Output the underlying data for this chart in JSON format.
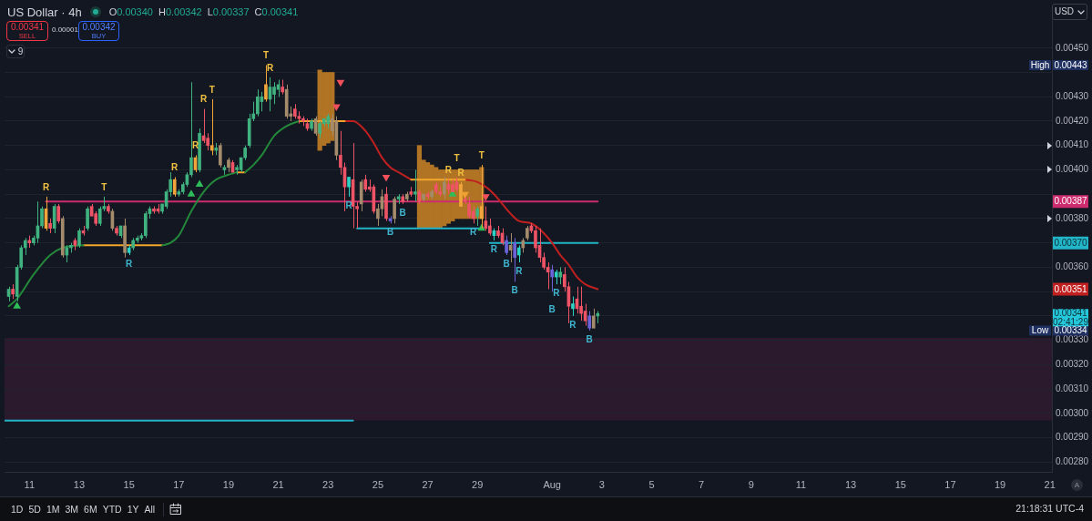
{
  "chart_data": {
    "type": "candlestick",
    "title": "US Dollar · 4h",
    "annotations": [
      "O0.00340",
      "H0.00342",
      "L0.00337",
      "C0.00341",
      "0.00341",
      "SELL",
      "0.00001",
      "0.00342",
      "BUY",
      "9",
      "1D",
      "5D",
      "1M",
      "3M",
      "6M",
      "YTD",
      "1Y",
      "All",
      "21:18:31 UTC-4",
      "USD",
      "A",
      "0.00341",
      "02:41:29",
      "High",
      "0.00443",
      "Low",
      "0.00334",
      {
        "text": "0.00387",
        "y": 0.00387
      },
      {
        "text": "0.00370",
        "y": 0.0037
      },
      {
        "text": "0.00351",
        "y": 0.00351
      },
      {
        "text": "R",
        "x": "--07-11T16:00",
        "y": 0.00389
      },
      {
        "text": "R",
        "x": "--07-16T20:00",
        "y": 0.00397
      },
      {
        "text": "R",
        "x": "--07-17T16:00",
        "y": 0.00406
      },
      {
        "text": "R",
        "x": "--07-18T00:00",
        "y": 0.00425
      },
      {
        "text": "R",
        "x": "--07-20T16:00",
        "y": 0.00438
      },
      {
        "text": "R",
        "x": "--07-27T20:00",
        "y": 0.00396
      },
      {
        "text": "R",
        "x": "--07-28T08:00",
        "y": 0.00395
      },
      {
        "text": "T",
        "x": "--07-14T00:00",
        "y": 0.00389
      },
      {
        "text": "T",
        "x": "--07-18T08:00",
        "y": 0.00429
      },
      {
        "text": "T",
        "x": "--07-20T12:00",
        "y": 0.00443
      },
      {
        "text": "T",
        "x": "--07-28T04:00",
        "y": 0.00397
      },
      {
        "text": "T",
        "x": "--07-29T04:00",
        "y": 0.00402
      },
      {
        "text": "R",
        "x": "--07-15T00:00",
        "y": 0.00365
      },
      {
        "text": "R",
        "x": "--07-23T20:00",
        "y": 0.00389
      },
      {
        "text": "R",
        "x": "--07-28T20:00",
        "y": 0.00378
      },
      {
        "text": "R",
        "x": "--07-29T16:00",
        "y": 0.00371
      },
      {
        "text": "R",
        "x": "--07-30T16:00",
        "y": 0.00362
      },
      {
        "text": "R",
        "x": "--08-01T04:00",
        "y": 0.00353
      },
      {
        "text": "R",
        "x": "--08-01T20:00",
        "y": 0.0034
      },
      {
        "text": "B",
        "x": "--07-25T12:00",
        "y": 0.00378
      },
      {
        "text": "B",
        "x": "--07-26T00:00",
        "y": 0.00386
      },
      {
        "text": "B",
        "x": "--07-30T04:00",
        "y": 0.00365
      },
      {
        "text": "B",
        "x": "--07-30T12:00",
        "y": 0.00354
      },
      {
        "text": "B",
        "x": "--08-01T00:00",
        "y": 0.0035
      },
      {
        "text": "B",
        "x": "--08-02T12:00",
        "y": 0.00334
      }
    ],
    "x": [
      "--07-10T04:00",
      "--07-10T08:00",
      "--07-10T12:00",
      "--07-10T16:00",
      "--07-10T20:00",
      "--07-11T00:00",
      "--07-11T04:00",
      "--07-11T08:00",
      "--07-11T12:00",
      "--07-11T16:00",
      "--07-11T20:00",
      "--07-12T00:00",
      "--07-12T04:00",
      "--07-12T08:00",
      "--07-12T12:00",
      "--07-12T16:00",
      "--07-12T20:00",
      "--07-13T00:00",
      "--07-13T04:00",
      "--07-13T08:00",
      "--07-13T12:00",
      "--07-13T16:00",
      "--07-13T20:00",
      "--07-14T00:00",
      "--07-14T04:00",
      "--07-14T08:00",
      "--07-14T12:00",
      "--07-14T16:00",
      "--07-14T20:00",
      "--07-15T00:00",
      "--07-15T04:00",
      "--07-15T08:00",
      "--07-15T12:00",
      "--07-15T16:00",
      "--07-15T20:00",
      "--07-16T00:00",
      "--07-16T04:00",
      "--07-16T08:00",
      "--07-16T12:00",
      "--07-16T16:00",
      "--07-16T20:00",
      "--07-17T00:00",
      "--07-17T04:00",
      "--07-17T08:00",
      "--07-17T12:00",
      "--07-17T16:00",
      "--07-17T20:00",
      "--07-18T00:00",
      "--07-18T04:00",
      "--07-18T08:00",
      "--07-18T12:00",
      "--07-18T16:00",
      "--07-18T20:00",
      "--07-19T00:00",
      "--07-19T04:00",
      "--07-19T08:00",
      "--07-19T12:00",
      "--07-19T16:00",
      "--07-19T20:00",
      "--07-20T00:00",
      "--07-20T04:00",
      "--07-20T08:00",
      "--07-20T12:00",
      "--07-20T16:00",
      "--07-20T20:00",
      "--07-21T00:00",
      "--07-21T04:00",
      "--07-21T08:00",
      "--07-21T12:00",
      "--07-21T16:00",
      "--07-21T20:00",
      "--07-22T00:00",
      "--07-22T04:00",
      "--07-22T08:00",
      "--07-22T12:00",
      "--07-22T16:00",
      "--07-22T20:00",
      "--07-23T00:00",
      "--07-23T04:00",
      "--07-23T08:00",
      "--07-23T12:00",
      "--07-23T16:00",
      "--07-23T20:00",
      "--07-24T00:00",
      "--07-24T04:00",
      "--07-24T08:00",
      "--07-24T12:00",
      "--07-24T16:00",
      "--07-24T20:00",
      "--07-25T00:00",
      "--07-25T04:00",
      "--07-25T08:00",
      "--07-25T12:00",
      "--07-25T16:00",
      "--07-25T20:00",
      "--07-26T00:00",
      "--07-26T04:00",
      "--07-26T08:00",
      "--07-26T12:00",
      "--07-26T16:00",
      "--07-26T20:00",
      "--07-27T00:00",
      "--07-27T04:00",
      "--07-27T08:00",
      "--07-27T12:00",
      "--07-27T16:00",
      "--07-27T20:00",
      "--07-28T00:00",
      "--07-28T04:00",
      "--07-28T08:00",
      "--07-28T12:00",
      "--07-28T16:00",
      "--07-28T20:00",
      "--07-29T00:00",
      "--07-29T04:00",
      "--07-29T08:00",
      "--07-29T12:00",
      "--07-29T16:00",
      "--07-29T20:00",
      "--07-30T00:00",
      "--07-30T04:00",
      "--07-30T08:00",
      "--07-30T12:00",
      "--07-30T16:00",
      "--07-30T20:00",
      "--07-31T00:00",
      "--07-31T04:00",
      "--07-31T08:00",
      "--07-31T12:00",
      "--07-31T16:00",
      "--07-31T20:00",
      "--08-01T00:00",
      "--08-01T04:00",
      "--08-01T08:00",
      "--08-01T12:00",
      "--08-01T16:00",
      "--08-01T20:00",
      "--08-02T00:00",
      "--08-02T04:00",
      "--08-02T08:00",
      "--08-02T12:00",
      "--08-02T16:00",
      "--08-02T20:00"
    ],
    "ohlc": [
      [
        0.00348,
        0.00352,
        0.00346,
        0.00351
      ],
      [
        0.00351,
        0.00353,
        0.00347,
        0.00349
      ],
      [
        0.00348,
        0.00361,
        0.00346,
        0.0036
      ],
      [
        0.0036,
        0.00369,
        0.00359,
        0.00368
      ],
      [
        0.00368,
        0.00372,
        0.00365,
        0.00371
      ],
      [
        0.00371,
        0.00373,
        0.00368,
        0.0037
      ],
      [
        0.0037,
        0.00373,
        0.00369,
        0.00372
      ],
      [
        0.00372,
        0.00387,
        0.0037,
        0.00377
      ],
      [
        0.00377,
        0.00385,
        0.00376,
        0.00384
      ],
      [
        0.00384,
        0.00389,
        0.00375,
        0.00376
      ],
      [
        0.00378,
        0.0038,
        0.00374,
        0.00376
      ],
      [
        0.00376,
        0.00386,
        0.00374,
        0.00385
      ],
      [
        0.00385,
        0.00386,
        0.00378,
        0.00379
      ],
      [
        0.0038,
        0.00381,
        0.00364,
        0.00365
      ],
      [
        0.00365,
        0.00369,
        0.00362,
        0.00368
      ],
      [
        0.00368,
        0.0037,
        0.00366,
        0.00369
      ],
      [
        0.00371,
        0.00372,
        0.00367,
        0.00369
      ],
      [
        0.00369,
        0.00376,
        0.00368,
        0.00375
      ],
      [
        0.00375,
        0.00377,
        0.00373,
        0.00374
      ],
      [
        0.00376,
        0.00385,
        0.00375,
        0.00384
      ],
      [
        0.00385,
        0.00386,
        0.00381,
        0.00381
      ],
      [
        0.00382,
        0.00383,
        0.00377,
        0.00378
      ],
      [
        0.00378,
        0.00385,
        0.00377,
        0.00384
      ],
      [
        0.00384,
        0.00389,
        0.00383,
        0.00385
      ],
      [
        0.00385,
        0.00386,
        0.00382,
        0.00383
      ],
      [
        0.00383,
        0.00384,
        0.00375,
        0.00376
      ],
      [
        0.00376,
        0.00377,
        0.00373,
        0.00374
      ],
      [
        0.00373,
        0.00377,
        0.00372,
        0.00377
      ],
      [
        0.00377,
        0.0038,
        0.00364,
        0.00366
      ],
      [
        0.00366,
        0.00369,
        0.00365,
        0.00368
      ],
      [
        0.00368,
        0.00372,
        0.00367,
        0.00371
      ],
      [
        0.00371,
        0.00373,
        0.0037,
        0.00372
      ],
      [
        0.00372,
        0.00374,
        0.00371,
        0.00373
      ],
      [
        0.00373,
        0.00383,
        0.00372,
        0.00382
      ],
      [
        0.00382,
        0.00385,
        0.0038,
        0.00384
      ],
      [
        0.00384,
        0.00385,
        0.00382,
        0.00383
      ],
      [
        0.00384,
        0.00386,
        0.00382,
        0.00383
      ],
      [
        0.00383,
        0.00386,
        0.00382,
        0.00386
      ],
      [
        0.00385,
        0.00392,
        0.00384,
        0.00391
      ],
      [
        0.00391,
        0.00399,
        0.00389,
        0.00396
      ],
      [
        0.00396,
        0.00397,
        0.00389,
        0.0039
      ],
      [
        0.0039,
        0.00392,
        0.00389,
        0.00391
      ],
      [
        0.00391,
        0.00395,
        0.0039,
        0.00394
      ],
      [
        0.00394,
        0.00399,
        0.00393,
        0.00398
      ],
      [
        0.00398,
        0.00436,
        0.00397,
        0.00405
      ],
      [
        0.00405,
        0.00406,
        0.00399,
        0.004
      ],
      [
        0.004,
        0.00417,
        0.00399,
        0.00415
      ],
      [
        0.00414,
        0.00425,
        0.00411,
        0.00412
      ],
      [
        0.00413,
        0.00415,
        0.00408,
        0.0041
      ],
      [
        0.0041,
        0.00429,
        0.00406,
        0.00408
      ],
      [
        0.00408,
        0.00411,
        0.00406,
        0.00409
      ],
      [
        0.0041,
        0.00411,
        0.00401,
        0.00402
      ],
      [
        0.004,
        0.00402,
        0.00398,
        0.00401
      ],
      [
        0.00404,
        0.00405,
        0.00399,
        0.00401
      ],
      [
        0.00403,
        0.00404,
        0.00399,
        0.00399
      ],
      [
        0.004,
        0.00402,
        0.00398,
        0.00401
      ],
      [
        0.004,
        0.00405,
        0.00399,
        0.00405
      ],
      [
        0.00405,
        0.0041,
        0.00404,
        0.00409
      ],
      [
        0.0041,
        0.00423,
        0.00409,
        0.00421
      ],
      [
        0.00421,
        0.00428,
        0.0042,
        0.00423
      ],
      [
        0.00423,
        0.00433,
        0.00422,
        0.0043
      ],
      [
        0.00428,
        0.00432,
        0.00424,
        0.0043
      ],
      [
        0.00435,
        0.00443,
        0.00428,
        0.00429
      ],
      [
        0.00429,
        0.00438,
        0.00424,
        0.00434
      ],
      [
        0.00431,
        0.00436,
        0.00427,
        0.00434
      ],
      [
        0.00433,
        0.00437,
        0.0043,
        0.00435
      ],
      [
        0.00434,
        0.00437,
        0.00431,
        0.00432
      ],
      [
        0.00433,
        0.00435,
        0.00421,
        0.00422
      ],
      [
        0.00423,
        0.00426,
        0.0042,
        0.00422
      ],
      [
        0.00425,
        0.00427,
        0.00421,
        0.00422
      ],
      [
        0.00422,
        0.00424,
        0.00419,
        0.00421
      ],
      [
        0.00421,
        0.00422,
        0.00418,
        0.0042
      ],
      [
        0.00419,
        0.00421,
        0.00416,
        0.00417
      ],
      [
        0.00417,
        0.00421,
        0.00416,
        0.0042
      ],
      [
        0.00421,
        0.00422,
        0.00414,
        0.00415
      ],
      [
        0.00415,
        0.0042,
        0.00413,
        0.00419
      ],
      [
        0.00419,
        0.00421,
        0.00418,
        0.00421
      ],
      [
        0.00419,
        0.00423,
        0.00417,
        0.00422
      ],
      [
        0.00421,
        0.00423,
        0.00414,
        0.00416
      ],
      [
        0.0042,
        0.00422,
        0.00404,
        0.00406
      ],
      [
        0.00406,
        0.00416,
        0.00398,
        0.00401
      ],
      [
        0.00401,
        0.00403,
        0.00383,
        0.00393
      ],
      [
        0.00393,
        0.00397,
        0.00389,
        0.00397
      ],
      [
        0.00396,
        0.00411,
        0.00376,
        0.00385
      ],
      [
        0.00385,
        0.00387,
        0.00376,
        0.00384
      ],
      [
        0.00386,
        0.00396,
        0.00383,
        0.00395
      ],
      [
        0.00396,
        0.00398,
        0.00391,
        0.00392
      ],
      [
        0.00393,
        0.00396,
        0.00391,
        0.00392
      ],
      [
        0.00393,
        0.00394,
        0.00382,
        0.00383
      ],
      [
        0.00384,
        0.00386,
        0.00377,
        0.0038
      ],
      [
        0.00384,
        0.00392,
        0.00381,
        0.00389
      ],
      [
        0.0039,
        0.00393,
        0.00379,
        0.0038
      ],
      [
        0.0038,
        0.00381,
        0.00378,
        0.00379
      ],
      [
        0.0038,
        0.00389,
        0.00378,
        0.00388
      ],
      [
        0.00388,
        0.0039,
        0.00386,
        0.00389
      ],
      [
        0.00389,
        0.0039,
        0.00386,
        0.00387
      ],
      [
        0.00388,
        0.00391,
        0.00387,
        0.0039
      ],
      [
        0.00391,
        0.00393,
        0.00389,
        0.0039
      ],
      [
        0.0039,
        0.004,
        0.00387,
        0.00391
      ],
      [
        0.00391,
        0.00392,
        0.00386,
        0.00387
      ],
      [
        0.00388,
        0.0039,
        0.00387,
        0.0039
      ],
      [
        0.0039,
        0.00391,
        0.00388,
        0.00389
      ],
      [
        0.00389,
        0.00392,
        0.00388,
        0.00391
      ],
      [
        0.00394,
        0.00395,
        0.0039,
        0.00391
      ],
      [
        0.00391,
        0.00393,
        0.00389,
        0.0039
      ],
      [
        0.0039,
        0.00397,
        0.00388,
        0.00395
      ],
      [
        0.00394,
        0.00396,
        0.0039,
        0.00392
      ],
      [
        0.00394,
        0.00396,
        0.00391,
        0.00391
      ],
      [
        0.00395,
        0.00397,
        0.00391,
        0.00392
      ],
      [
        0.00394,
        0.00395,
        0.00385,
        0.00385
      ],
      [
        0.00388,
        0.00389,
        0.00386,
        0.00387
      ],
      [
        0.00386,
        0.00389,
        0.0038,
        0.00381
      ],
      [
        0.00383,
        0.00385,
        0.00378,
        0.0038
      ],
      [
        0.00381,
        0.00385,
        0.00377,
        0.00384
      ],
      [
        0.00385,
        0.00402,
        0.00376,
        0.0038
      ],
      [
        0.00379,
        0.00385,
        0.00375,
        0.00376
      ],
      [
        0.00377,
        0.0038,
        0.00373,
        0.00374
      ],
      [
        0.00373,
        0.00376,
        0.00371,
        0.00375
      ],
      [
        0.00375,
        0.00377,
        0.00372,
        0.00373
      ],
      [
        0.00374,
        0.00376,
        0.00369,
        0.0037
      ],
      [
        0.00371,
        0.00373,
        0.00365,
        0.00366
      ],
      [
        0.00367,
        0.00374,
        0.00362,
        0.00369
      ],
      [
        0.0037,
        0.00372,
        0.00354,
        0.00364
      ],
      [
        0.00365,
        0.00369,
        0.00362,
        0.00368
      ],
      [
        0.00368,
        0.00372,
        0.00366,
        0.00371
      ],
      [
        0.00372,
        0.00377,
        0.00371,
        0.00376
      ],
      [
        0.00377,
        0.00378,
        0.00374,
        0.00375
      ],
      [
        0.00375,
        0.00377,
        0.00366,
        0.00368
      ],
      [
        0.00369,
        0.00376,
        0.00362,
        0.00364
      ],
      [
        0.00364,
        0.00366,
        0.00359,
        0.0036
      ],
      [
        0.0036,
        0.00362,
        0.00351,
        0.00358
      ],
      [
        0.00359,
        0.00361,
        0.0035,
        0.00356
      ],
      [
        0.00356,
        0.00359,
        0.00353,
        0.00358
      ],
      [
        0.00356,
        0.0036,
        0.00353,
        0.00358
      ],
      [
        0.00357,
        0.0036,
        0.0035,
        0.00352
      ],
      [
        0.00352,
        0.00354,
        0.00337,
        0.00344
      ],
      [
        0.00343,
        0.00348,
        0.0034,
        0.00345
      ],
      [
        0.00347,
        0.00352,
        0.00341,
        0.00343
      ],
      [
        0.00344,
        0.00352,
        0.00338,
        0.00341
      ],
      [
        0.00342,
        0.00345,
        0.00336,
        0.00338
      ],
      [
        0.0034,
        0.00342,
        0.00334,
        0.00335
      ],
      [
        0.00335,
        0.00343,
        0.00335,
        0.0034
      ],
      [
        0.0034,
        0.00342,
        0.00337,
        0.00341
      ]
    ],
    "colors": [
      "#3fb27f",
      "#ef5466",
      "#3fb27f",
      "#3fb27f",
      "#3fb27f",
      "#ef5466",
      "#3fb27f",
      "#3fb27f",
      "#3fb27f",
      "#f2a53a",
      "#ef5466",
      "#3fb27f",
      "#ef5466",
      "#a48b6b",
      "#3fb27f",
      "#3fb27f",
      "#ef5466",
      "#3fb27f",
      "#ef5466",
      "#3fb27f",
      "#ef5466",
      "#ef5466",
      "#3fb27f",
      "#3fb27f",
      "#ef5466",
      "#a48b6b",
      "#ef5466",
      "#3fb27f",
      "#a48b6b",
      "#2cd3c4",
      "#3fb27f",
      "#3fb27f",
      "#3fb27f",
      "#3fb27f",
      "#3fb27f",
      "#ef5466",
      "#ef5466",
      "#3fb27f",
      "#3fb27f",
      "#3fb27f",
      "#f2a53a",
      "#3fb27f",
      "#3fb27f",
      "#3fb27f",
      "#3fb27f",
      "#f2a53a",
      "#3fb27f",
      "#ef5466",
      "#ef5466",
      "#f2a53a",
      "#3fb27f",
      "#a48b6b",
      "#3fb27f",
      "#a48b6b",
      "#ef5466",
      "#3fb27f",
      "#3fb27f",
      "#3fb27f",
      "#3fb27f",
      "#3fb27f",
      "#3fb27f",
      "#3fb27f",
      "#f2a53a",
      "#3fb27f",
      "#3fb27f",
      "#3fb27f",
      "#ef5466",
      "#a48b6b",
      "#a48b6b",
      "#ef5466",
      "#ef5466",
      "#ef5466",
      "#ef5466",
      "#3fb27f",
      "#a48b6b",
      "#3fb27f",
      "#3fb27f",
      "#3fb27f",
      "#a48b6b",
      "#a48b6b",
      "#ef5466",
      "#ef5466",
      "#2cd3c4",
      "#ef5466",
      "#ef5466",
      "#a48b6b",
      "#ef5466",
      "#ef5466",
      "#ef5466",
      "#a48b6b",
      "#a48b6b",
      "#ef5466",
      "#6c63d9",
      "#a48b6b",
      "#3fb27f",
      "#ef5466",
      "#a48b6b",
      "#ef5466",
      "#3fb27f",
      "#ef5466",
      "#a48b6b",
      "#ef5466",
      "#a48b6b",
      "#ef5466",
      "#ef5466",
      "#a48b6b",
      "#ef5466",
      "#ef5466",
      "#ef5466",
      "#f2a53a",
      "#ef5466",
      "#ef5466",
      "#ef5466",
      "#3fb27f",
      "#f2a53a",
      "#ef5466",
      "#ef5466",
      "#2cd3c4",
      "#ef5466",
      "#ef5466",
      "#6c63d9",
      "#a48b6b",
      "#6c63d9",
      "#2cd3c4",
      "#a48b6b",
      "#a48b6b",
      "#ef5466",
      "#ef5466",
      "#ef5466",
      "#ef5466",
      "#ef5466",
      "#6c63d9",
      "#2cd3c4",
      "#3fb27f",
      "#ef5466",
      "#ef5466",
      "#2cd3c4",
      "#ef5466",
      "#ef5466",
      "#ef5466",
      "#6c63d9",
      "#a48b6b",
      "#3fb27f"
    ],
    "xlim": [
      "--07-10T00:00",
      "--08-21T02:00"
    ],
    "xticks": [
      {
        "value": "--07-11",
        "label": "11"
      },
      {
        "value": "--07-13",
        "label": "13"
      },
      {
        "value": "--07-15",
        "label": "15"
      },
      {
        "value": "--07-17",
        "label": "17"
      },
      {
        "value": "--07-19",
        "label": "19"
      },
      {
        "value": "--07-21",
        "label": "21"
      },
      {
        "value": "--07-23",
        "label": "23"
      },
      {
        "value": "--07-25",
        "label": "25"
      },
      {
        "value": "--07-27",
        "label": "27"
      },
      {
        "value": "--07-29",
        "label": "29"
      },
      {
        "value": "--08-01",
        "label": "Aug"
      },
      {
        "value": "--08-03",
        "label": "3"
      },
      {
        "value": "--08-05",
        "label": "5"
      },
      {
        "value": "--08-07",
        "label": "7"
      },
      {
        "value": "--08-09",
        "label": "9"
      },
      {
        "value": "--08-11",
        "label": "11"
      },
      {
        "value": "--08-13",
        "label": "13"
      },
      {
        "value": "--08-15",
        "label": "15"
      },
      {
        "value": "--08-17",
        "label": "17"
      },
      {
        "value": "--08-19",
        "label": "19"
      },
      {
        "value": "--08-21",
        "label": "21"
      }
    ],
    "ylim": [
      0.00276,
      0.00466
    ],
    "yticks": [
      {
        "value": 0.0028,
        "label": "0.00280"
      },
      {
        "value": 0.0029,
        "label": "0.00290"
      },
      {
        "value": 0.003,
        "label": "0.00300"
      },
      {
        "value": 0.0031,
        "label": "0.00310"
      },
      {
        "value": 0.0032,
        "label": "0.00320"
      },
      {
        "value": 0.0033,
        "label": "0.00330"
      },
      {
        "value": 0.0034,
        "label": null
      },
      {
        "value": 0.0035,
        "label": null
      },
      {
        "value": 0.0036,
        "label": "0.00360"
      },
      {
        "value": 0.0037,
        "label": null
      },
      {
        "value": 0.0038,
        "label": "0.00380"
      },
      {
        "value": 0.0039,
        "label": null
      },
      {
        "value": 0.004,
        "label": "0.00400"
      },
      {
        "value": 0.0041,
        "label": "0.00410"
      },
      {
        "value": 0.0042,
        "label": "0.00420"
      },
      {
        "value": 0.0043,
        "label": "0.00430"
      },
      {
        "value": 0.0044,
        "label": null
      },
      {
        "value": 0.0045,
        "label": "0.00450"
      }
    ],
    "grid": "y",
    "bands": [
      {
        "axis": "y",
        "from": 0.00297,
        "to": 0.00331,
        "color": "#2b1a2e"
      }
    ],
    "series": [
      {
        "type": "line",
        "color": "#23883a",
        "x": [
          "--07-10T04:00",
          "--07-10T12:00",
          "--07-11T04:00",
          "--07-11T20:00",
          "--07-12T08:00",
          "--07-13T04:00",
          "--07-14T12:00",
          "--07-16T08:00",
          "--07-16T16:00",
          "--07-17T00:00",
          "--07-17T12:00",
          "--07-18T00:00",
          "--07-18T12:00",
          "--07-19T00:00",
          "--07-19T08:00",
          "--07-19T12:00",
          "--07-19T16:00",
          "--07-20T00:00",
          "--07-20T08:00",
          "--07-20T20:00",
          "--07-21T08:00",
          "--07-21T20:00"
        ],
        "values": [
          0.00344,
          0.00347,
          0.00357,
          0.00365,
          0.00368,
          0.00369,
          null,
          0.00369,
          0.0037,
          0.00373,
          0.00383,
          0.00391,
          0.00396,
          0.00398,
          0.00399,
          null,
          0.00399,
          0.00402,
          0.00406,
          0.00414,
          0.00418,
          0.0042
        ]
      },
      {
        "type": "line",
        "color": "#f4a62a",
        "x": [
          "--07-13T04:00",
          "--07-16T08:00",
          "--07-18T00:00",
          "--07-19T08:00",
          "--07-19T16:00",
          "--07-20T12:00",
          "--07-21T20:00",
          "--07-23T16:00",
          "--07-25T00:00",
          "--07-26T08:00",
          "--07-28T12:00"
        ],
        "values": [
          0.00369,
          0.00369,
          null,
          0.00399,
          0.00399,
          null,
          0.0042,
          0.0042,
          null,
          0.00396,
          0.00396
        ]
      },
      {
        "type": "line",
        "color": "#c0201f",
        "x": [
          "--07-23T16:00",
          "--07-24T00:00",
          "--07-24T12:00",
          "--07-24T20:00",
          "--07-25T04:00",
          "--07-25T12:00",
          "--07-25T20:00",
          "--07-26T08:00",
          "--07-27T00:00",
          "--07-28T12:00",
          "--07-29T00:00",
          "--07-29T08:00",
          "--07-29T16:00",
          "--07-30T00:00",
          "--07-30T08:00",
          "--07-30T16:00",
          "--07-31T04:00",
          "--07-31T16:00",
          "--08-01T00:00",
          "--08-01T08:00",
          "--08-01T16:00",
          "--08-02T00:00",
          "--08-02T08:00",
          "--08-02T20:00"
        ],
        "values": [
          0.0042,
          0.0042,
          0.00416,
          0.00411,
          0.00405,
          0.00401,
          0.00399,
          0.00396,
          null,
          0.00396,
          0.00395,
          0.00393,
          0.0039,
          0.00386,
          0.00382,
          0.00379,
          0.00378,
          0.00374,
          0.0037,
          0.00365,
          0.00361,
          0.00356,
          0.00353,
          0.00351
        ]
      },
      {
        "type": "line",
        "color": "#cc2c6e",
        "x": [
          "--07-11T16:00",
          "--08-02T20:00"
        ],
        "values": [
          0.00387,
          0.00387
        ]
      },
      {
        "type": "line",
        "color": "#22b5c8",
        "x": [
          "--07-24T04:00",
          "--07-29T04:00"
        ],
        "values": [
          0.00376,
          0.00376
        ]
      },
      {
        "type": "line",
        "color": "#22b5c8",
        "x": [
          "--07-29T12:00",
          "--08-02T20:00"
        ],
        "values": [
          0.0037,
          0.0037
        ]
      },
      {
        "type": "line",
        "color": "#22b5c8",
        "x": [
          "--07-10T00:00",
          "--07-24T00:00"
        ],
        "values": [
          0.00297,
          0.00297
        ]
      },
      {
        "type": "bar",
        "color": "#b07424",
        "x": [
          "--07-22T16:00",
          "--07-22T20:00",
          "--07-23T00:00",
          "--07-23T04:00"
        ],
        "base": [
          0.00408,
          0.0041,
          0.00411,
          0.00412
        ],
        "values": [
          0.00033,
          0.0003,
          0.00029,
          0.00028
        ]
      },
      {
        "type": "bar",
        "color": "#b07424",
        "x": [
          "--07-26T16:00",
          "--07-26T20:00",
          "--07-27T00:00",
          "--07-27T04:00",
          "--07-27T08:00",
          "--07-27T12:00",
          "--07-27T16:00",
          "--07-27T20:00",
          "--07-28T00:00",
          "--07-28T04:00",
          "--07-28T08:00",
          "--07-28T12:00",
          "--07-28T16:00",
          "--07-28T20:00",
          "--07-29T00:00",
          "--07-29T04:00"
        ],
        "base": [
          0.00376,
          0.00376,
          0.00376,
          0.00376,
          0.00376,
          0.00376,
          0.00377,
          0.00378,
          0.00379,
          0.0038,
          0.0038,
          0.0038,
          0.0038,
          0.0038,
          0.0038,
          0.0038
        ],
        "values": [
          0.00034,
          0.00028,
          0.00027,
          0.00026,
          0.00025,
          0.00024,
          0.00023,
          0.00022,
          0.00021,
          0.0002,
          0.0002,
          0.0002,
          0.0002,
          0.0002,
          0.0002,
          0.00021
        ]
      },
      {
        "type": "scatter",
        "marker": "triangle",
        "color": "#2ebd59",
        "x": [
          "--07-10T12:00",
          "--07-17T12:00",
          "--07-17T20:00",
          "--07-28T00:00",
          "--07-29T04:00"
        ],
        "values": [
          0.00344,
          0.0039,
          0.00394,
          0.0039,
          0.00376
        ]
      },
      {
        "type": "scatter",
        "marker": "triangle",
        "color": "#f0505a",
        "x": [
          "--07-23T08:00",
          "--07-23T12:00",
          "--07-25T08:00",
          "--07-29T08:00"
        ],
        "values": [
          0.00426,
          0.00436,
          0.00397,
          0.00389
        ]
      },
      {
        "type": "scatter",
        "marker": "triangle",
        "color": "#f0a030",
        "x": [
          "--07-28T12:00"
        ],
        "values": [
          0.0039
        ]
      }
    ]
  }
}
